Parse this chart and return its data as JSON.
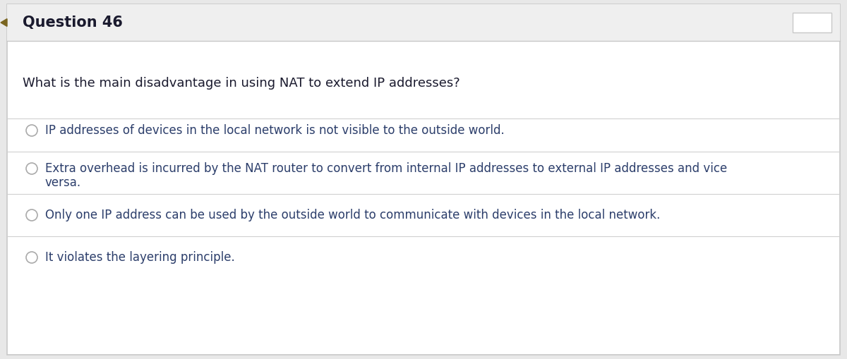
{
  "title": "Question 46",
  "question": "What is the main disadvantage in using NAT to extend IP addresses?",
  "options": [
    "IP addresses of devices in the local network is not visible to the outside world.",
    "Extra overhead is incurred by the NAT router to convert from internal IP addresses to external IP addresses and vice\nversa.",
    "Only one IP address can be used by the outside world to communicate with devices in the local network.",
    "It violates the layering principle."
  ],
  "bg_color": "#ffffff",
  "header_bg": "#efefef",
  "border_color": "#c8c8c8",
  "title_color": "#1a1a2e",
  "question_color": "#1a1a2e",
  "option_color": "#2c3e6b",
  "radio_color": "#aaaaaa",
  "separator_color": "#d0d0d0",
  "left_accent_color": "#7a6520",
  "figsize": [
    12.0,
    5.09
  ],
  "dpi": 100
}
